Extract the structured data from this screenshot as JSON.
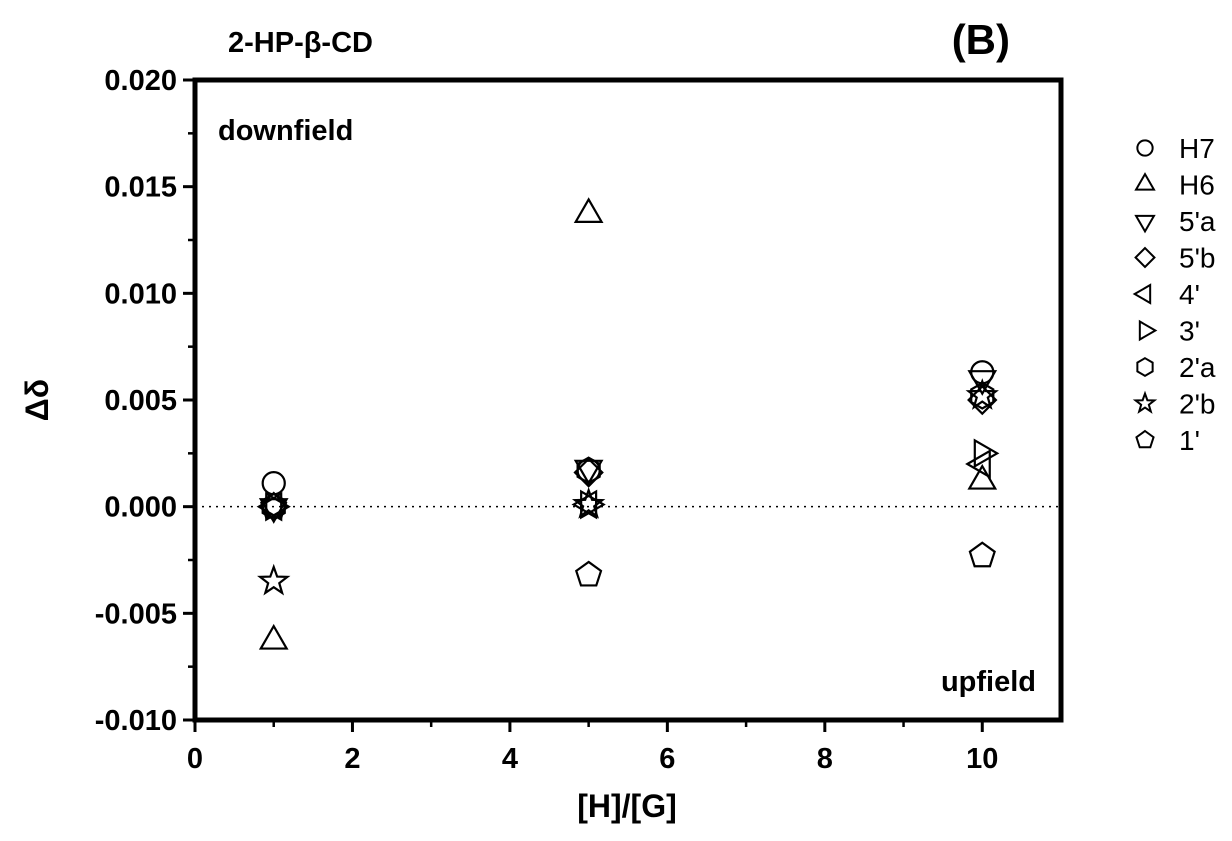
{
  "chart_data": {
    "type": "scatter",
    "title": "2-HP-β-CD",
    "panel_label": "(B)",
    "xlabel": "[H]/[G]",
    "ylabel": "Δδ",
    "xlim": [
      0,
      11
    ],
    "ylim": [
      -0.01,
      0.02
    ],
    "x_ticks": [
      0,
      2,
      4,
      6,
      8,
      10
    ],
    "x_tick_labels": [
      "0",
      "2",
      "4",
      "6",
      "8",
      "10"
    ],
    "y_ticks": [
      -0.01,
      -0.005,
      0.0,
      0.005,
      0.01,
      0.015,
      0.02
    ],
    "y_tick_labels": [
      "-0.010",
      "-0.005",
      "0.000",
      "0.005",
      "0.010",
      "0.015",
      "0.020"
    ],
    "reference_line": {
      "y": 0.0,
      "style": "dotted"
    },
    "annotations": [
      {
        "text": "downfield",
        "position": "top-left"
      },
      {
        "text": "upfield",
        "position": "bottom-right"
      }
    ],
    "legend_position": "outside-right",
    "grid": false,
    "series": [
      {
        "name": "H7",
        "marker": "circle",
        "x": [
          1,
          5,
          10
        ],
        "y": [
          0.0011,
          0.0017,
          0.0063
        ]
      },
      {
        "name": "H6",
        "marker": "triangle-up",
        "x": [
          1,
          5,
          10
        ],
        "y": [
          -0.0063,
          0.0137,
          0.0012
        ]
      },
      {
        "name": "5'a",
        "marker": "triangle-down",
        "x": [
          1,
          5,
          10
        ],
        "y": [
          0.0,
          0.0018,
          0.006
        ]
      },
      {
        "name": "5'b",
        "marker": "diamond",
        "x": [
          1,
          5,
          10
        ],
        "y": [
          0.0,
          0.0016,
          0.005
        ]
      },
      {
        "name": "4'",
        "marker": "triangle-left",
        "x": [
          1,
          5,
          10
        ],
        "y": [
          0.0,
          0.0001,
          0.002
        ]
      },
      {
        "name": "3'",
        "marker": "triangle-right",
        "x": [
          1,
          5,
          10
        ],
        "y": [
          0.0,
          0.0001,
          0.0025
        ]
      },
      {
        "name": "2'a",
        "marker": "hexagon",
        "x": [
          1,
          5,
          10
        ],
        "y": [
          0.0,
          0.0017,
          0.0052
        ]
      },
      {
        "name": "2'b",
        "marker": "star",
        "x": [
          1,
          5,
          10
        ],
        "y": [
          -0.0035,
          0.0001,
          0.0052
        ]
      },
      {
        "name": "1'",
        "marker": "pentagon",
        "x": [
          1,
          5,
          10
        ],
        "y": [
          0.0,
          -0.0032,
          -0.0023
        ]
      }
    ]
  }
}
